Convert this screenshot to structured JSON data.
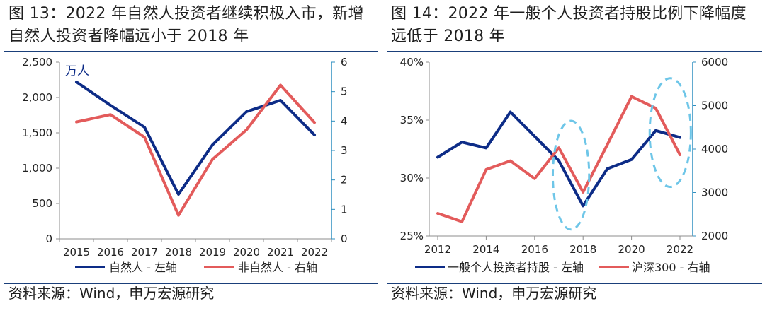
{
  "panels": [
    {
      "title": "图 13：2022 年自然人投资者继续积极入市，新增自然人投资者降幅远小于 2018 年",
      "source": "资料来源：Wind，申万宏源研究"
    },
    {
      "title": "图 14：2022 年一般个人投资者持股比例下降幅度远低于 2018 年",
      "source": "资料来源：Wind，申万宏源研究"
    }
  ],
  "colors": {
    "navy": "#0d2c87",
    "red": "#e35b5b",
    "axis_right": "#2f8fc0",
    "rule": "#1a3f7a",
    "ellipse": "#6ec6e8"
  },
  "chart_data": [
    {
      "type": "line",
      "unit_label": "万人",
      "categories": [
        "2015",
        "2016",
        "2017",
        "2018",
        "2019",
        "2020",
        "2021",
        "2022"
      ],
      "y_left": {
        "range": [
          0,
          2500
        ],
        "ticks": [
          "0",
          "500",
          "1,000",
          "1,500",
          "2,000",
          "2,500"
        ]
      },
      "y_right": {
        "range": [
          0,
          6
        ],
        "ticks": [
          "0",
          "1",
          "2",
          "3",
          "4",
          "5",
          "6"
        ]
      },
      "series": [
        {
          "name": "自然人 - 左轴",
          "axis": "left",
          "color": "#0d2c87",
          "values": [
            2220,
            1890,
            1580,
            630,
            1330,
            1800,
            1960,
            1470
          ]
        },
        {
          "name": "非自然人 - 右轴",
          "axis": "right",
          "color": "#e35b5b",
          "values": [
            3.97,
            4.22,
            3.45,
            0.8,
            2.7,
            3.7,
            5.22,
            3.95
          ]
        }
      ],
      "legend_position": "bottom"
    },
    {
      "type": "line",
      "x_ticks": [
        "2012",
        "2014",
        "2016",
        "2018",
        "2020",
        "2022"
      ],
      "x_range": [
        2012,
        2022
      ],
      "y_left": {
        "range": [
          25,
          40
        ],
        "ticks": [
          "25%",
          "30%",
          "35%",
          "40%"
        ]
      },
      "y_right": {
        "range": [
          2000,
          6000
        ],
        "ticks": [
          "2000",
          "3000",
          "4000",
          "5000",
          "6000"
        ]
      },
      "series": [
        {
          "name": "一般个人投资者持股 - 左轴",
          "axis": "left",
          "color": "#0d2c87",
          "x": [
            2012,
            2013,
            2014,
            2015,
            2016,
            2017,
            2018,
            2019,
            2020,
            2021,
            2022
          ],
          "values": [
            31.8,
            33.1,
            32.6,
            35.7,
            33.6,
            31.5,
            27.6,
            30.8,
            31.6,
            34.1,
            33.5
          ]
        },
        {
          "name": "沪深300 - 右轴",
          "axis": "right",
          "color": "#e35b5b",
          "x": [
            2012,
            2013,
            2014,
            2015,
            2016,
            2017,
            2018,
            2019,
            2020,
            2021,
            2022
          ],
          "values": [
            2520,
            2330,
            3530,
            3730,
            3320,
            4030,
            3010,
            4100,
            5210,
            4940,
            3870
          ]
        }
      ],
      "annotations": [
        {
          "type": "dashed-ellipse",
          "x_center": 2017.5,
          "y_center_right": 3400,
          "rx_years": 0.75,
          "ry_right": 1250
        },
        {
          "type": "dashed-ellipse",
          "x_center": 2021.6,
          "y_center_right": 4380,
          "rx_years": 0.85,
          "ry_right": 1250
        }
      ],
      "legend_position": "bottom"
    }
  ]
}
